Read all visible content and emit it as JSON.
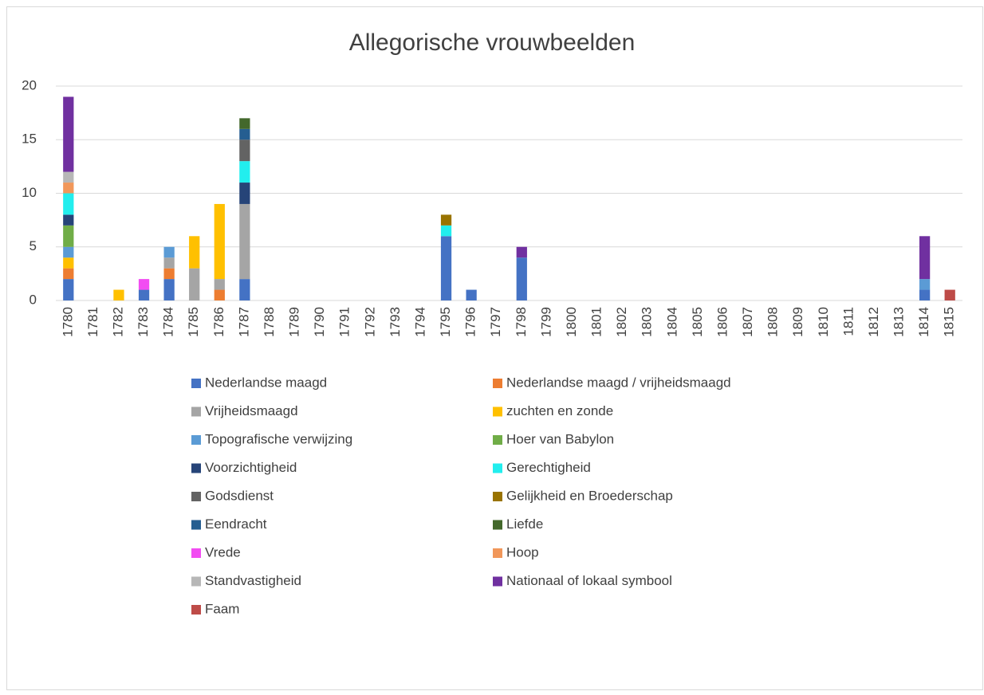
{
  "chart_data": {
    "type": "stacked_bar",
    "title": "Allegorische vrouwbeelden",
    "categories": [
      "1780",
      "1781",
      "1782",
      "1783",
      "1784",
      "1785",
      "1786",
      "1787",
      "1788",
      "1789",
      "1790",
      "1791",
      "1792",
      "1793",
      "1794",
      "1795",
      "1796",
      "1797",
      "1798",
      "1799",
      "1800",
      "1801",
      "1802",
      "1803",
      "1804",
      "1805",
      "1806",
      "1807",
      "1808",
      "1809",
      "1810",
      "1811",
      "1812",
      "1813",
      "1814",
      "1815"
    ],
    "ylim": [
      0,
      20
    ],
    "yticks": [
      0,
      5,
      10,
      15,
      20
    ],
    "grid": true,
    "legend": "bottom",
    "series": [
      {
        "name": "Nederlandse maagd",
        "color": "#4472c4",
        "values": [
          2,
          0,
          0,
          1,
          2,
          0,
          0,
          2,
          0,
          0,
          0,
          0,
          0,
          0,
          0,
          6,
          1,
          0,
          4,
          0,
          0,
          0,
          0,
          0,
          0,
          0,
          0,
          0,
          0,
          0,
          0,
          0,
          0,
          0,
          1,
          0
        ]
      },
      {
        "name": "Nederlandse maagd / vrijheidsmaagd",
        "color": "#ed7d31",
        "values": [
          1,
          0,
          0,
          0,
          1,
          0,
          1,
          0,
          0,
          0,
          0,
          0,
          0,
          0,
          0,
          0,
          0,
          0,
          0,
          0,
          0,
          0,
          0,
          0,
          0,
          0,
          0,
          0,
          0,
          0,
          0,
          0,
          0,
          0,
          0,
          0
        ]
      },
      {
        "name": "Vrijheidsmaagd",
        "color": "#a5a5a5",
        "values": [
          0,
          0,
          0,
          0,
          1,
          3,
          1,
          7,
          0,
          0,
          0,
          0,
          0,
          0,
          0,
          0,
          0,
          0,
          0,
          0,
          0,
          0,
          0,
          0,
          0,
          0,
          0,
          0,
          0,
          0,
          0,
          0,
          0,
          0,
          0,
          0
        ]
      },
      {
        "name": "zuchten en zonde",
        "color": "#ffc000",
        "values": [
          1,
          0,
          1,
          0,
          0,
          3,
          7,
          0,
          0,
          0,
          0,
          0,
          0,
          0,
          0,
          0,
          0,
          0,
          0,
          0,
          0,
          0,
          0,
          0,
          0,
          0,
          0,
          0,
          0,
          0,
          0,
          0,
          0,
          0,
          0,
          0
        ]
      },
      {
        "name": "Topografische verwijzing",
        "color": "#5b9bd5",
        "values": [
          1,
          0,
          0,
          0,
          1,
          0,
          0,
          0,
          0,
          0,
          0,
          0,
          0,
          0,
          0,
          0,
          0,
          0,
          0,
          0,
          0,
          0,
          0,
          0,
          0,
          0,
          0,
          0,
          0,
          0,
          0,
          0,
          0,
          0,
          1,
          0
        ]
      },
      {
        "name": "Hoer van Babylon",
        "color": "#70ad47",
        "values": [
          2,
          0,
          0,
          0,
          0,
          0,
          0,
          0,
          0,
          0,
          0,
          0,
          0,
          0,
          0,
          0,
          0,
          0,
          0,
          0,
          0,
          0,
          0,
          0,
          0,
          0,
          0,
          0,
          0,
          0,
          0,
          0,
          0,
          0,
          0,
          0
        ]
      },
      {
        "name": "Voorzichtigheid",
        "color": "#264478",
        "values": [
          1,
          0,
          0,
          0,
          0,
          0,
          0,
          2,
          0,
          0,
          0,
          0,
          0,
          0,
          0,
          0,
          0,
          0,
          0,
          0,
          0,
          0,
          0,
          0,
          0,
          0,
          0,
          0,
          0,
          0,
          0,
          0,
          0,
          0,
          0,
          0
        ]
      },
      {
        "name": "Gerechtigheid",
        "color": "#22eeee",
        "values": [
          2,
          0,
          0,
          0,
          0,
          0,
          0,
          2,
          0,
          0,
          0,
          0,
          0,
          0,
          0,
          1,
          0,
          0,
          0,
          0,
          0,
          0,
          0,
          0,
          0,
          0,
          0,
          0,
          0,
          0,
          0,
          0,
          0,
          0,
          0,
          0
        ]
      },
      {
        "name": "Godsdienst",
        "color": "#636363",
        "values": [
          0,
          0,
          0,
          0,
          0,
          0,
          0,
          2,
          0,
          0,
          0,
          0,
          0,
          0,
          0,
          0,
          0,
          0,
          0,
          0,
          0,
          0,
          0,
          0,
          0,
          0,
          0,
          0,
          0,
          0,
          0,
          0,
          0,
          0,
          0,
          0
        ]
      },
      {
        "name": "Gelijkheid en Broederschap",
        "color": "#997300",
        "values": [
          0,
          0,
          0,
          0,
          0,
          0,
          0,
          0,
          0,
          0,
          0,
          0,
          0,
          0,
          0,
          1,
          0,
          0,
          0,
          0,
          0,
          0,
          0,
          0,
          0,
          0,
          0,
          0,
          0,
          0,
          0,
          0,
          0,
          0,
          0,
          0
        ]
      },
      {
        "name": "Eendracht",
        "color": "#255e91",
        "values": [
          0,
          0,
          0,
          0,
          0,
          0,
          0,
          1,
          0,
          0,
          0,
          0,
          0,
          0,
          0,
          0,
          0,
          0,
          0,
          0,
          0,
          0,
          0,
          0,
          0,
          0,
          0,
          0,
          0,
          0,
          0,
          0,
          0,
          0,
          0,
          0
        ]
      },
      {
        "name": "Liefde",
        "color": "#43682b",
        "values": [
          0,
          0,
          0,
          0,
          0,
          0,
          0,
          1,
          0,
          0,
          0,
          0,
          0,
          0,
          0,
          0,
          0,
          0,
          0,
          0,
          0,
          0,
          0,
          0,
          0,
          0,
          0,
          0,
          0,
          0,
          0,
          0,
          0,
          0,
          0,
          0
        ]
      },
      {
        "name": "Vrede",
        "color": "#f24cf2",
        "values": [
          0,
          0,
          0,
          1,
          0,
          0,
          0,
          0,
          0,
          0,
          0,
          0,
          0,
          0,
          0,
          0,
          0,
          0,
          0,
          0,
          0,
          0,
          0,
          0,
          0,
          0,
          0,
          0,
          0,
          0,
          0,
          0,
          0,
          0,
          0,
          0
        ]
      },
      {
        "name": "Hoop",
        "color": "#f1975a",
        "values": [
          1,
          0,
          0,
          0,
          0,
          0,
          0,
          0,
          0,
          0,
          0,
          0,
          0,
          0,
          0,
          0,
          0,
          0,
          0,
          0,
          0,
          0,
          0,
          0,
          0,
          0,
          0,
          0,
          0,
          0,
          0,
          0,
          0,
          0,
          0,
          0
        ]
      },
      {
        "name": "Standvastigheid",
        "color": "#b7b7b7",
        "values": [
          1,
          0,
          0,
          0,
          0,
          0,
          0,
          0,
          0,
          0,
          0,
          0,
          0,
          0,
          0,
          0,
          0,
          0,
          0,
          0,
          0,
          0,
          0,
          0,
          0,
          0,
          0,
          0,
          0,
          0,
          0,
          0,
          0,
          0,
          0,
          0
        ]
      },
      {
        "name": "Nationaal of lokaal symbool",
        "color": "#7030a0",
        "values": [
          7,
          0,
          0,
          0,
          0,
          0,
          0,
          0,
          0,
          0,
          0,
          0,
          0,
          0,
          0,
          0,
          0,
          0,
          1,
          0,
          0,
          0,
          0,
          0,
          0,
          0,
          0,
          0,
          0,
          0,
          0,
          0,
          0,
          0,
          4,
          0
        ]
      },
      {
        "name": "Faam",
        "color": "#be4b48",
        "values": [
          0,
          0,
          0,
          0,
          0,
          0,
          0,
          0,
          0,
          0,
          0,
          0,
          0,
          0,
          0,
          0,
          0,
          0,
          0,
          0,
          0,
          0,
          0,
          0,
          0,
          0,
          0,
          0,
          0,
          0,
          0,
          0,
          0,
          0,
          0,
          1
        ]
      }
    ]
  }
}
